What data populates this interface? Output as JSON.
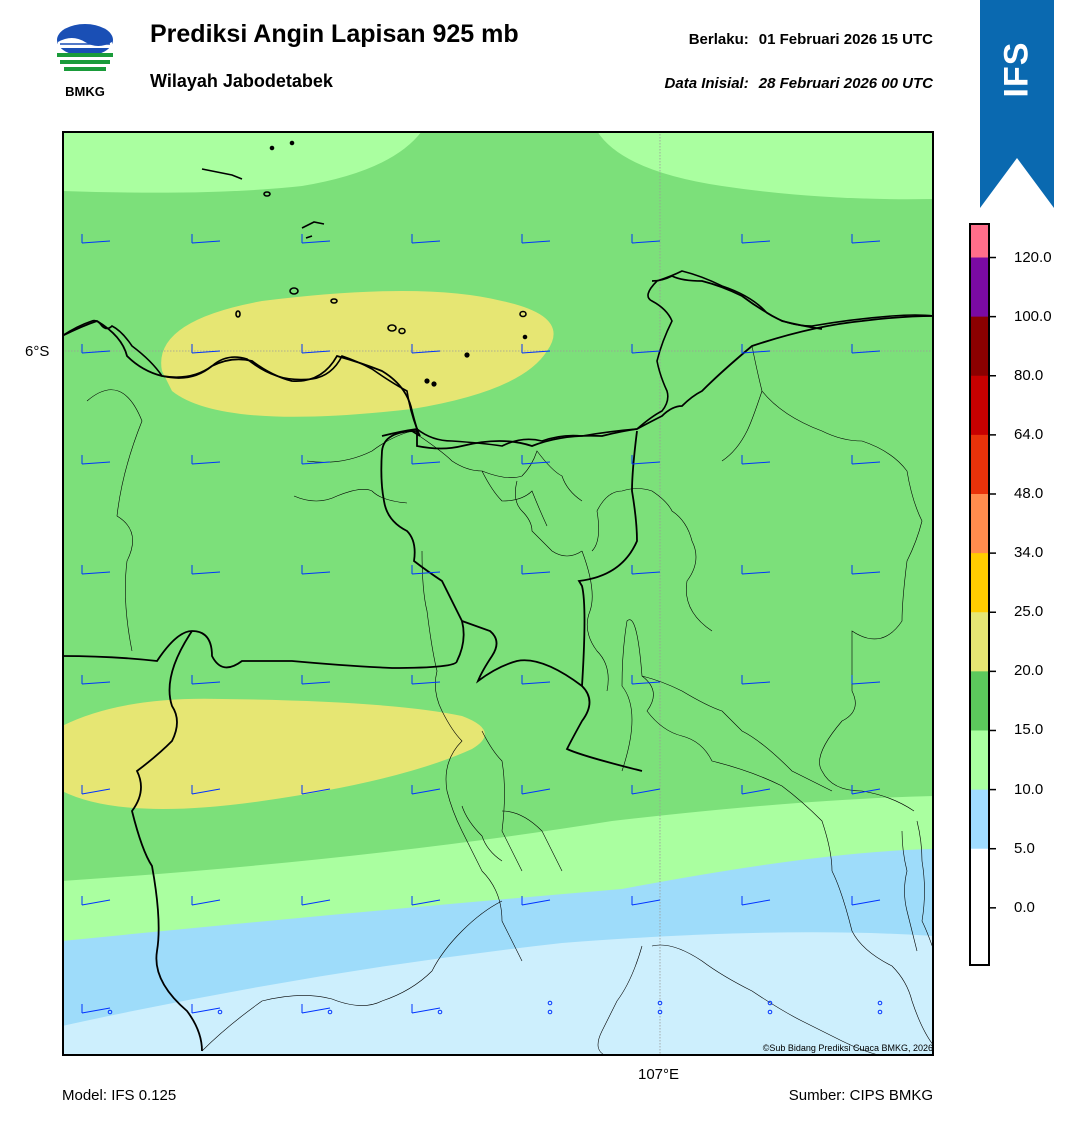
{
  "header": {
    "logo_text": "BMKG",
    "title": "Prediksi Angin Lapisan 925 mb",
    "subtitle": "Wilayah Jabodetabek",
    "valid_label": "Berlaku:",
    "valid_time": "01 Februari 2026 15 UTC",
    "init_label": "Data Inisial:",
    "init_time": "28 Februari 2026 00 UTC"
  },
  "banner": {
    "text": "IFS",
    "color": "#0a69b0"
  },
  "map": {
    "lat_label": "6°S",
    "lon_label": "107°E",
    "copyright": "©Sub Bidang Prediksi Cuaca BMKG, 2026",
    "wind_barb_color": "#0033ff",
    "coastline_color": "#000000"
  },
  "colorbar": {
    "labels": [
      "120.0",
      "100.0",
      "80.0",
      "64.0",
      "48.0",
      "34.0",
      "25.0",
      "20.0",
      "15.0",
      "10.0",
      "5.0",
      "0.0"
    ],
    "colors": [
      "#ff6e8a",
      "#7a0aa3",
      "#8b0000",
      "#c70000",
      "#e8320a",
      "#ff8c4d",
      "#ffcc00",
      "#e6e673",
      "#5cc85c",
      "#aaffa0",
      "#a0dcff",
      "#ffffff"
    ],
    "speed_classes": {
      "0-5": "#cdeffd",
      "5-10": "#9edcfa",
      "10-15": "#aaffa0",
      "15-20": "#7ce07a",
      "20-25": "#e6e673"
    }
  },
  "footer": {
    "model": "Model: IFS 0.125",
    "source": "Sumber: CIPS BMKG"
  }
}
